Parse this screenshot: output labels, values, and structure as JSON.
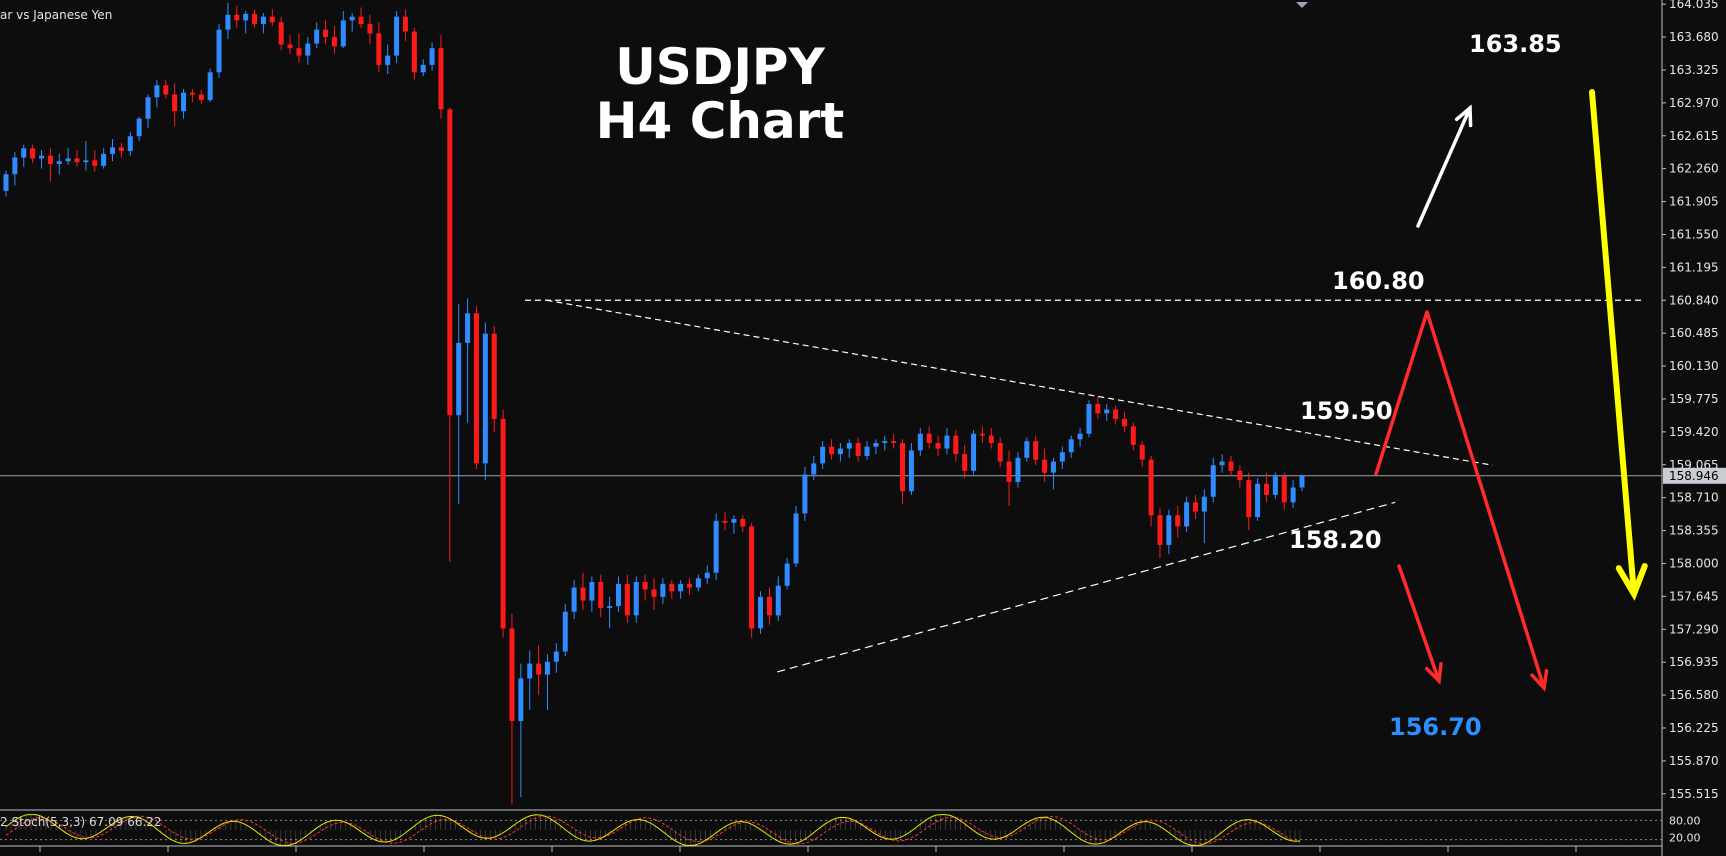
{
  "symbol_label": "ar vs Japanese Yen",
  "title_line1": "USDJPY",
  "title_line2": "H4 Chart",
  "levels": {
    "l16385": {
      "text": "163.85",
      "color": "#ffffff"
    },
    "l16080": {
      "text": "160.80",
      "color": "#ffffff"
    },
    "l15950": {
      "text": "159.50",
      "color": "#ffffff"
    },
    "l15820": {
      "text": "158.20",
      "color": "#ffffff"
    },
    "l15670": {
      "text": "156.70",
      "color": "#2b8fff"
    }
  },
  "stochastic": {
    "label": "2 Stoch(5,3,3) 67.09 66.22",
    "upper": "80.00",
    "lower": "20.00"
  },
  "current_price": "158.946",
  "colors": {
    "background": "#0d0d0d",
    "bull": "#2f8bff",
    "bear": "#ff1a1a",
    "axis_text": "#e6e6e6",
    "dashed": "#ffffff",
    "red_arrow": "#ff2a2a",
    "yellow_arrow": "#ffff00",
    "stoch_k": "#e6e600",
    "stoch_d": "#ff3030"
  },
  "chart_data": {
    "type": "candlestick",
    "y_axis_ticks": [
      "164.035",
      "163.680",
      "163.325",
      "162.970",
      "162.615",
      "162.260",
      "161.905",
      "161.550",
      "161.195",
      "160.840",
      "160.485",
      "160.130",
      "159.775",
      "159.420",
      "159.065",
      "158.710",
      "158.355",
      "158.000",
      "157.645",
      "157.290",
      "156.935",
      "156.580",
      "156.225",
      "155.870",
      "155.515"
    ],
    "ylim": [
      155.34,
      164.08
    ],
    "horizontal_line": 160.84,
    "current_price": 158.946,
    "triangle": {
      "upper_from": [
        0.3,
        160.84
      ],
      "upper_to": [
        0.865,
        159.06
      ],
      "lower_from": [
        0.452,
        156.83
      ],
      "lower_to": [
        0.81,
        158.66
      ]
    },
    "candles": [
      {
        "o": 162.02,
        "h": 162.24,
        "l": 161.96,
        "c": 162.2
      },
      {
        "o": 162.2,
        "h": 162.44,
        "l": 162.08,
        "c": 162.38
      },
      {
        "o": 162.38,
        "h": 162.52,
        "l": 162.28,
        "c": 162.48
      },
      {
        "o": 162.48,
        "h": 162.52,
        "l": 162.32,
        "c": 162.37
      },
      {
        "o": 162.37,
        "h": 162.46,
        "l": 162.26,
        "c": 162.4
      },
      {
        "o": 162.4,
        "h": 162.48,
        "l": 162.12,
        "c": 162.31
      },
      {
        "o": 162.31,
        "h": 162.42,
        "l": 162.2,
        "c": 162.34
      },
      {
        "o": 162.34,
        "h": 162.48,
        "l": 162.3,
        "c": 162.37
      },
      {
        "o": 162.37,
        "h": 162.46,
        "l": 162.28,
        "c": 162.33
      },
      {
        "o": 162.33,
        "h": 162.56,
        "l": 162.24,
        "c": 162.35
      },
      {
        "o": 162.35,
        "h": 162.46,
        "l": 162.23,
        "c": 162.29
      },
      {
        "o": 162.29,
        "h": 162.48,
        "l": 162.26,
        "c": 162.42
      },
      {
        "o": 162.42,
        "h": 162.58,
        "l": 162.34,
        "c": 162.49
      },
      {
        "o": 162.49,
        "h": 162.54,
        "l": 162.38,
        "c": 162.45
      },
      {
        "o": 162.45,
        "h": 162.66,
        "l": 162.4,
        "c": 162.61
      },
      {
        "o": 162.61,
        "h": 162.82,
        "l": 162.56,
        "c": 162.8
      },
      {
        "o": 162.8,
        "h": 163.06,
        "l": 162.7,
        "c": 163.03
      },
      {
        "o": 163.03,
        "h": 163.22,
        "l": 162.92,
        "c": 163.16
      },
      {
        "o": 163.16,
        "h": 163.22,
        "l": 163.02,
        "c": 163.06
      },
      {
        "o": 163.06,
        "h": 163.18,
        "l": 162.72,
        "c": 162.88
      },
      {
        "o": 162.88,
        "h": 163.12,
        "l": 162.8,
        "c": 163.08
      },
      {
        "o": 163.08,
        "h": 163.12,
        "l": 162.98,
        "c": 163.06
      },
      {
        "o": 163.06,
        "h": 163.11,
        "l": 162.96,
        "c": 163.0
      },
      {
        "o": 163.0,
        "h": 163.34,
        "l": 162.98,
        "c": 163.3
      },
      {
        "o": 163.3,
        "h": 163.82,
        "l": 163.24,
        "c": 163.76
      },
      {
        "o": 163.76,
        "h": 164.05,
        "l": 163.66,
        "c": 163.92
      },
      {
        "o": 163.92,
        "h": 164.02,
        "l": 163.78,
        "c": 163.86
      },
      {
        "o": 163.86,
        "h": 163.96,
        "l": 163.72,
        "c": 163.93
      },
      {
        "o": 163.93,
        "h": 163.98,
        "l": 163.78,
        "c": 163.82
      },
      {
        "o": 163.82,
        "h": 163.94,
        "l": 163.72,
        "c": 163.9
      },
      {
        "o": 163.9,
        "h": 163.98,
        "l": 163.8,
        "c": 163.84
      },
      {
        "o": 163.84,
        "h": 163.9,
        "l": 163.54,
        "c": 163.6
      },
      {
        "o": 163.6,
        "h": 163.7,
        "l": 163.5,
        "c": 163.56
      },
      {
        "o": 163.56,
        "h": 163.72,
        "l": 163.4,
        "c": 163.48
      },
      {
        "o": 163.48,
        "h": 163.68,
        "l": 163.38,
        "c": 163.61
      },
      {
        "o": 163.61,
        "h": 163.84,
        "l": 163.56,
        "c": 163.76
      },
      {
        "o": 163.76,
        "h": 163.86,
        "l": 163.6,
        "c": 163.68
      },
      {
        "o": 163.68,
        "h": 163.8,
        "l": 163.5,
        "c": 163.58
      },
      {
        "o": 163.58,
        "h": 163.96,
        "l": 163.56,
        "c": 163.86
      },
      {
        "o": 163.86,
        "h": 163.94,
        "l": 163.74,
        "c": 163.9
      },
      {
        "o": 163.9,
        "h": 164.0,
        "l": 163.78,
        "c": 163.82
      },
      {
        "o": 163.82,
        "h": 163.92,
        "l": 163.6,
        "c": 163.72
      },
      {
        "o": 163.72,
        "h": 163.84,
        "l": 163.3,
        "c": 163.38
      },
      {
        "o": 163.38,
        "h": 163.6,
        "l": 163.28,
        "c": 163.48
      },
      {
        "o": 163.48,
        "h": 163.96,
        "l": 163.4,
        "c": 163.9
      },
      {
        "o": 163.9,
        "h": 163.98,
        "l": 163.64,
        "c": 163.74
      },
      {
        "o": 163.74,
        "h": 163.78,
        "l": 163.22,
        "c": 163.3
      },
      {
        "o": 163.3,
        "h": 163.44,
        "l": 163.26,
        "c": 163.38
      },
      {
        "o": 163.38,
        "h": 163.62,
        "l": 163.32,
        "c": 163.56
      },
      {
        "o": 163.56,
        "h": 163.7,
        "l": 162.8,
        "c": 162.9
      },
      {
        "o": 162.9,
        "h": 162.92,
        "l": 158.02,
        "c": 159.6
      },
      {
        "o": 159.6,
        "h": 160.8,
        "l": 158.64,
        "c": 160.38
      },
      {
        "o": 160.38,
        "h": 160.86,
        "l": 159.52,
        "c": 160.7
      },
      {
        "o": 160.7,
        "h": 160.78,
        "l": 159.02,
        "c": 159.08
      },
      {
        "o": 159.08,
        "h": 160.6,
        "l": 158.9,
        "c": 160.48
      },
      {
        "o": 160.48,
        "h": 160.56,
        "l": 159.42,
        "c": 159.56
      },
      {
        "o": 159.56,
        "h": 159.66,
        "l": 157.2,
        "c": 157.3
      },
      {
        "o": 157.3,
        "h": 157.46,
        "l": 155.4,
        "c": 156.3
      },
      {
        "o": 156.3,
        "h": 156.92,
        "l": 155.48,
        "c": 156.76
      },
      {
        "o": 156.76,
        "h": 157.06,
        "l": 156.42,
        "c": 156.92
      },
      {
        "o": 156.92,
        "h": 157.12,
        "l": 156.58,
        "c": 156.8
      },
      {
        "o": 156.8,
        "h": 157.02,
        "l": 156.42,
        "c": 156.94
      },
      {
        "o": 156.94,
        "h": 157.14,
        "l": 156.82,
        "c": 157.05
      },
      {
        "o": 157.05,
        "h": 157.56,
        "l": 157.0,
        "c": 157.48
      },
      {
        "o": 157.48,
        "h": 157.82,
        "l": 157.4,
        "c": 157.74
      },
      {
        "o": 157.74,
        "h": 157.9,
        "l": 157.5,
        "c": 157.6
      },
      {
        "o": 157.6,
        "h": 157.86,
        "l": 157.48,
        "c": 157.8
      },
      {
        "o": 157.8,
        "h": 157.88,
        "l": 157.42,
        "c": 157.52
      },
      {
        "o": 157.52,
        "h": 157.64,
        "l": 157.3,
        "c": 157.54
      },
      {
        "o": 157.54,
        "h": 157.86,
        "l": 157.48,
        "c": 157.78
      },
      {
        "o": 157.78,
        "h": 157.88,
        "l": 157.36,
        "c": 157.44
      },
      {
        "o": 157.44,
        "h": 157.86,
        "l": 157.36,
        "c": 157.8
      },
      {
        "o": 157.8,
        "h": 157.88,
        "l": 157.6,
        "c": 157.72
      },
      {
        "o": 157.72,
        "h": 157.84,
        "l": 157.5,
        "c": 157.64
      },
      {
        "o": 157.64,
        "h": 157.84,
        "l": 157.56,
        "c": 157.78
      },
      {
        "o": 157.78,
        "h": 157.82,
        "l": 157.62,
        "c": 157.7
      },
      {
        "o": 157.7,
        "h": 157.82,
        "l": 157.62,
        "c": 157.78
      },
      {
        "o": 157.78,
        "h": 157.84,
        "l": 157.66,
        "c": 157.74
      },
      {
        "o": 157.74,
        "h": 157.88,
        "l": 157.7,
        "c": 157.84
      },
      {
        "o": 157.84,
        "h": 157.98,
        "l": 157.78,
        "c": 157.9
      },
      {
        "o": 157.9,
        "h": 158.54,
        "l": 157.82,
        "c": 158.46
      },
      {
        "o": 158.46,
        "h": 158.56,
        "l": 158.36,
        "c": 158.44
      },
      {
        "o": 158.44,
        "h": 158.52,
        "l": 158.32,
        "c": 158.48
      },
      {
        "o": 158.48,
        "h": 158.52,
        "l": 158.34,
        "c": 158.4
      },
      {
        "o": 158.4,
        "h": 158.44,
        "l": 157.2,
        "c": 157.3
      },
      {
        "o": 157.3,
        "h": 157.7,
        "l": 157.24,
        "c": 157.64
      },
      {
        "o": 157.64,
        "h": 157.74,
        "l": 157.34,
        "c": 157.44
      },
      {
        "o": 157.44,
        "h": 157.86,
        "l": 157.38,
        "c": 157.76
      },
      {
        "o": 157.76,
        "h": 158.06,
        "l": 157.72,
        "c": 158.0
      },
      {
        "o": 158.0,
        "h": 158.62,
        "l": 157.96,
        "c": 158.54
      },
      {
        "o": 158.54,
        "h": 159.04,
        "l": 158.46,
        "c": 158.96
      },
      {
        "o": 158.96,
        "h": 159.16,
        "l": 158.9,
        "c": 159.08
      },
      {
        "o": 159.08,
        "h": 159.32,
        "l": 159.02,
        "c": 159.26
      },
      {
        "o": 159.26,
        "h": 159.34,
        "l": 159.12,
        "c": 159.18
      },
      {
        "o": 159.18,
        "h": 159.3,
        "l": 159.1,
        "c": 159.24
      },
      {
        "o": 159.24,
        "h": 159.34,
        "l": 159.14,
        "c": 159.3
      },
      {
        "o": 159.3,
        "h": 159.36,
        "l": 159.1,
        "c": 159.16
      },
      {
        "o": 159.16,
        "h": 159.32,
        "l": 159.12,
        "c": 159.26
      },
      {
        "o": 159.26,
        "h": 159.34,
        "l": 159.18,
        "c": 159.3
      },
      {
        "o": 159.3,
        "h": 159.38,
        "l": 159.22,
        "c": 159.32
      },
      {
        "o": 159.32,
        "h": 159.4,
        "l": 159.24,
        "c": 159.3
      },
      {
        "o": 159.3,
        "h": 159.34,
        "l": 158.64,
        "c": 158.78
      },
      {
        "o": 158.78,
        "h": 159.3,
        "l": 158.74,
        "c": 159.22
      },
      {
        "o": 159.22,
        "h": 159.46,
        "l": 159.16,
        "c": 159.4
      },
      {
        "o": 159.4,
        "h": 159.48,
        "l": 159.24,
        "c": 159.3
      },
      {
        "o": 159.3,
        "h": 159.38,
        "l": 159.16,
        "c": 159.24
      },
      {
        "o": 159.24,
        "h": 159.46,
        "l": 159.18,
        "c": 159.38
      },
      {
        "o": 159.38,
        "h": 159.44,
        "l": 159.1,
        "c": 159.18
      },
      {
        "o": 159.18,
        "h": 159.28,
        "l": 158.92,
        "c": 159.0
      },
      {
        "o": 159.0,
        "h": 159.44,
        "l": 158.96,
        "c": 159.4
      },
      {
        "o": 159.4,
        "h": 159.48,
        "l": 159.3,
        "c": 159.38
      },
      {
        "o": 159.38,
        "h": 159.46,
        "l": 159.24,
        "c": 159.3
      },
      {
        "o": 159.3,
        "h": 159.36,
        "l": 159.04,
        "c": 159.1
      },
      {
        "o": 159.1,
        "h": 159.22,
        "l": 158.62,
        "c": 158.88
      },
      {
        "o": 158.88,
        "h": 159.2,
        "l": 158.82,
        "c": 159.14
      },
      {
        "o": 159.14,
        "h": 159.36,
        "l": 159.1,
        "c": 159.32
      },
      {
        "o": 159.32,
        "h": 159.38,
        "l": 159.06,
        "c": 159.12
      },
      {
        "o": 159.12,
        "h": 159.24,
        "l": 158.88,
        "c": 158.98
      },
      {
        "o": 158.98,
        "h": 159.14,
        "l": 158.8,
        "c": 159.1
      },
      {
        "o": 159.1,
        "h": 159.26,
        "l": 159.02,
        "c": 159.2
      },
      {
        "o": 159.2,
        "h": 159.38,
        "l": 159.14,
        "c": 159.34
      },
      {
        "o": 159.34,
        "h": 159.46,
        "l": 159.26,
        "c": 159.4
      },
      {
        "o": 159.4,
        "h": 159.76,
        "l": 159.36,
        "c": 159.72
      },
      {
        "o": 159.72,
        "h": 159.8,
        "l": 159.56,
        "c": 159.62
      },
      {
        "o": 159.62,
        "h": 159.72,
        "l": 159.54,
        "c": 159.66
      },
      {
        "o": 159.66,
        "h": 159.7,
        "l": 159.5,
        "c": 159.56
      },
      {
        "o": 159.56,
        "h": 159.64,
        "l": 159.42,
        "c": 159.48
      },
      {
        "o": 159.48,
        "h": 159.52,
        "l": 159.22,
        "c": 159.28
      },
      {
        "o": 159.28,
        "h": 159.32,
        "l": 159.04,
        "c": 159.12
      },
      {
        "o": 159.12,
        "h": 159.16,
        "l": 158.4,
        "c": 158.52
      },
      {
        "o": 158.52,
        "h": 158.6,
        "l": 158.06,
        "c": 158.2
      },
      {
        "o": 158.2,
        "h": 158.58,
        "l": 158.1,
        "c": 158.52
      },
      {
        "o": 158.52,
        "h": 158.62,
        "l": 158.28,
        "c": 158.4
      },
      {
        "o": 158.4,
        "h": 158.72,
        "l": 158.34,
        "c": 158.66
      },
      {
        "o": 158.66,
        "h": 158.74,
        "l": 158.48,
        "c": 158.56
      },
      {
        "o": 158.56,
        "h": 158.8,
        "l": 158.22,
        "c": 158.72
      },
      {
        "o": 158.72,
        "h": 159.14,
        "l": 158.66,
        "c": 159.06
      },
      {
        "o": 159.06,
        "h": 159.18,
        "l": 158.98,
        "c": 159.1
      },
      {
        "o": 159.1,
        "h": 159.16,
        "l": 158.94,
        "c": 159.0
      },
      {
        "o": 159.0,
        "h": 159.06,
        "l": 158.82,
        "c": 158.9
      },
      {
        "o": 158.9,
        "h": 158.98,
        "l": 158.36,
        "c": 158.5
      },
      {
        "o": 158.5,
        "h": 158.92,
        "l": 158.46,
        "c": 158.86
      },
      {
        "o": 158.86,
        "h": 158.98,
        "l": 158.66,
        "c": 158.74
      },
      {
        "o": 158.74,
        "h": 158.98,
        "l": 158.7,
        "c": 158.94
      },
      {
        "o": 158.94,
        "h": 158.98,
        "l": 158.58,
        "c": 158.66
      },
      {
        "o": 158.66,
        "h": 158.9,
        "l": 158.6,
        "c": 158.82
      },
      {
        "o": 158.82,
        "h": 158.96,
        "l": 158.78,
        "c": 158.946
      }
    ]
  }
}
